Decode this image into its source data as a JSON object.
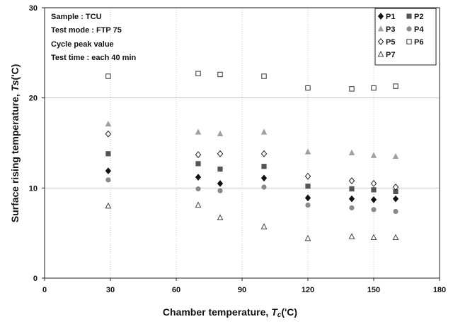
{
  "chart_data": {
    "type": "scatter",
    "title": "",
    "xlabel_main": "Chamber temperature, ",
    "xlabel_symbol": "T",
    "xlabel_sub": "c",
    "xlabel_unit": "('C)",
    "ylabel_main": "Surface rising temperature, ",
    "ylabel_symbol": "Ts",
    "ylabel_unit": "('C)",
    "xlim": [
      0,
      180
    ],
    "ylim": [
      0,
      30
    ],
    "x_ticks": [
      0,
      30,
      60,
      90,
      120,
      150,
      180
    ],
    "y_ticks": [
      0,
      10,
      20,
      30
    ],
    "x_tick_labels": [
      "0",
      "30",
      "60",
      "90",
      "120",
      "150",
      "180"
    ],
    "y_tick_labels": [
      "0",
      "10",
      "20",
      "30"
    ],
    "grid": true,
    "legend_position": "top-right",
    "annotations": [
      "Sample : TCU",
      "Test mode : FTP 75",
      "Cycle peak value",
      "Test time : each 40 min"
    ],
    "series": [
      {
        "name": "P1",
        "marker": "diamond-filled",
        "color": "#111111",
        "x": [
          29,
          70,
          80,
          100,
          120,
          140,
          150,
          160
        ],
        "y": [
          11.9,
          11.2,
          10.5,
          11.1,
          8.9,
          8.8,
          8.7,
          8.8
        ]
      },
      {
        "name": "P2",
        "marker": "square-filled",
        "color": "#555555",
        "x": [
          29,
          70,
          80,
          100,
          120,
          140,
          150,
          160
        ],
        "y": [
          13.8,
          12.7,
          12.1,
          12.4,
          10.2,
          9.9,
          9.8,
          9.6
        ]
      },
      {
        "name": "P3",
        "marker": "triangle-filled",
        "color": "#a0a0a0",
        "x": [
          29,
          70,
          80,
          100,
          120,
          140,
          150,
          160
        ],
        "y": [
          17.1,
          16.2,
          16.0,
          16.2,
          14.0,
          13.9,
          13.6,
          13.5
        ]
      },
      {
        "name": "P4",
        "marker": "circle-filled",
        "color": "#8a8a8a",
        "x": [
          29,
          70,
          80,
          100,
          120,
          140,
          150,
          160
        ],
        "y": [
          10.9,
          9.9,
          9.7,
          10.1,
          8.1,
          7.8,
          7.6,
          7.4
        ]
      },
      {
        "name": "P5",
        "marker": "diamond-open",
        "color": "#222222",
        "x": [
          29,
          70,
          80,
          100,
          120,
          140,
          150,
          160
        ],
        "y": [
          16.0,
          13.7,
          13.8,
          13.8,
          11.3,
          10.8,
          10.5,
          10.1
        ]
      },
      {
        "name": "P6",
        "marker": "square-open",
        "color": "#333333",
        "x": [
          29,
          70,
          80,
          100,
          120,
          140,
          150,
          160
        ],
        "y": [
          22.4,
          22.7,
          22.6,
          22.4,
          21.1,
          21.0,
          21.1,
          21.3
        ]
      },
      {
        "name": "P7",
        "marker": "triangle-open",
        "color": "#444444",
        "x": [
          29,
          70,
          80,
          100,
          120,
          140,
          150,
          160
        ],
        "y": [
          8.0,
          8.1,
          6.7,
          5.7,
          4.4,
          4.6,
          4.5,
          4.5
        ]
      }
    ]
  }
}
